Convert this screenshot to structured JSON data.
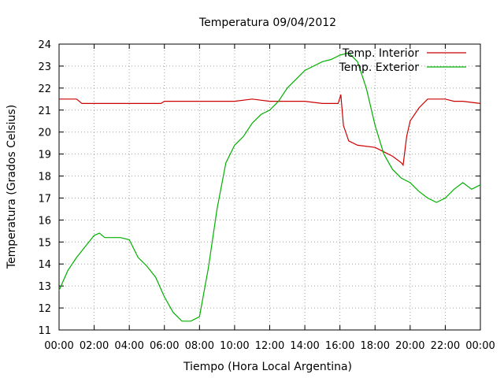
{
  "chart_data": {
    "type": "line",
    "title": "Temperatura 09/04/2012",
    "xlabel": "Tiempo (Hora Local Argentina)",
    "ylabel": "Temperatura (Grados Celsius)",
    "xlim": [
      0,
      24
    ],
    "ylim": [
      11,
      24
    ],
    "x_ticks": [
      0,
      2,
      4,
      6,
      8,
      10,
      12,
      14,
      16,
      18,
      20,
      22,
      24
    ],
    "x_tick_labels": [
      "00:00",
      "02:00",
      "04:00",
      "06:00",
      "08:00",
      "10:00",
      "12:00",
      "14:00",
      "16:00",
      "18:00",
      "20:00",
      "22:00",
      "00:00"
    ],
    "y_ticks": [
      11,
      12,
      13,
      14,
      15,
      16,
      17,
      18,
      19,
      20,
      21,
      22,
      23,
      24
    ],
    "grid": true,
    "legend_position": "top-right",
    "series": [
      {
        "name": "Temp. Interior",
        "color": "#cc0000",
        "x": [
          0,
          1.0,
          1.3,
          3.0,
          4.0,
          5.0,
          5.8,
          6.0,
          6.5,
          8.0,
          9.0,
          10.0,
          11.0,
          12.0,
          13.0,
          14.0,
          15.0,
          15.9,
          16.05,
          16.2,
          16.5,
          17.0,
          18.0,
          18.5,
          19.0,
          19.5,
          19.6,
          19.8,
          20.0,
          20.5,
          21.0,
          22.0,
          22.5,
          23.0,
          24.0
        ],
        "y": [
          21.5,
          21.5,
          21.3,
          21.3,
          21.3,
          21.3,
          21.3,
          21.4,
          21.4,
          21.4,
          21.4,
          21.4,
          21.5,
          21.4,
          21.4,
          21.4,
          21.3,
          21.3,
          21.7,
          20.3,
          19.6,
          19.4,
          19.3,
          19.1,
          18.9,
          18.6,
          18.5,
          19.8,
          20.5,
          21.1,
          21.5,
          21.5,
          21.4,
          21.4,
          21.3
        ]
      },
      {
        "name": "Temp. Exterior",
        "color": "#00b000",
        "x": [
          0,
          0.5,
          1.0,
          1.5,
          2.0,
          2.3,
          2.6,
          3.0,
          3.5,
          4.0,
          4.5,
          5.0,
          5.5,
          6.0,
          6.5,
          7.0,
          7.5,
          8.0,
          8.5,
          9.0,
          9.5,
          10.0,
          10.5,
          11.0,
          11.5,
          12.0,
          12.5,
          13.0,
          13.5,
          14.0,
          14.5,
          15.0,
          15.5,
          16.0,
          16.5,
          17.0,
          17.5,
          18.0,
          18.5,
          19.0,
          19.5,
          20.0,
          20.5,
          21.0,
          21.5,
          22.0,
          22.5,
          23.0,
          23.5,
          24.0
        ],
        "y": [
          12.8,
          13.7,
          14.3,
          14.8,
          15.3,
          15.4,
          15.2,
          15.2,
          15.2,
          15.1,
          14.3,
          13.9,
          13.4,
          12.5,
          11.8,
          11.4,
          11.4,
          11.6,
          13.8,
          16.5,
          18.6,
          19.4,
          19.8,
          20.4,
          20.8,
          21.0,
          21.4,
          22.0,
          22.4,
          22.8,
          23.0,
          23.2,
          23.3,
          23.5,
          23.6,
          23.2,
          22.0,
          20.3,
          19.0,
          18.3,
          17.9,
          17.7,
          17.3,
          17.0,
          16.8,
          17.0,
          17.4,
          17.7,
          17.4,
          17.6
        ]
      }
    ]
  }
}
